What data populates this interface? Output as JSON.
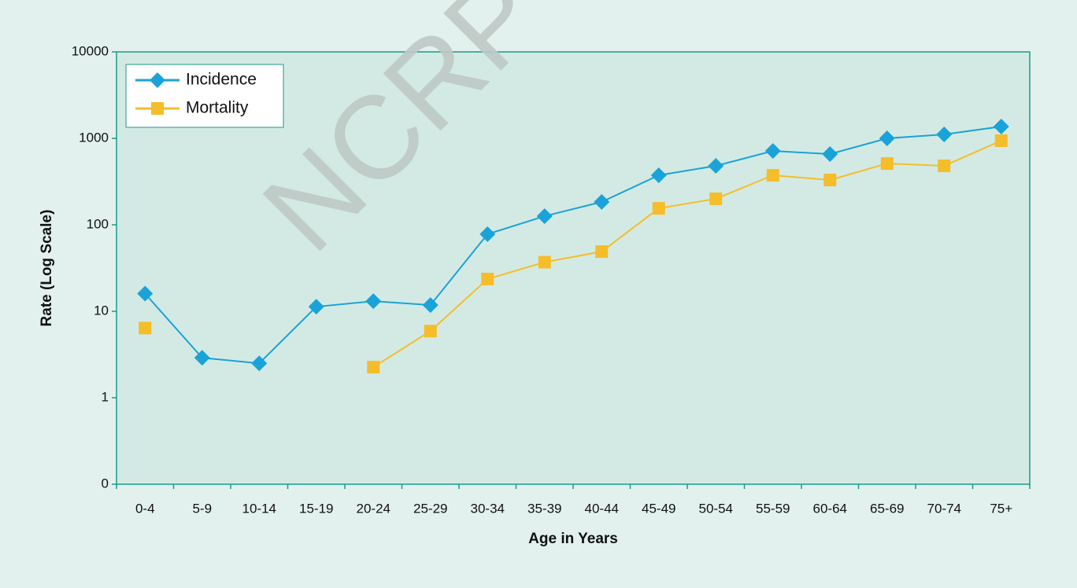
{
  "chart_data": {
    "type": "line",
    "watermark": "NCRP",
    "xlabel": "Age in Years",
    "ylabel": "Rate (Log Scale)",
    "categories": [
      "0-4",
      "5-9",
      "10-14",
      "15-19",
      "20-24",
      "25-29",
      "30-34",
      "35-39",
      "40-44",
      "45-49",
      "50-54",
      "55-59",
      "60-64",
      "65-69",
      "70-74",
      "75+"
    ],
    "series": [
      {
        "name": "Incidence",
        "color": "#1aa3d8",
        "marker": "diamond",
        "values": [
          16,
          2.9,
          2.5,
          11.3,
          13.1,
          11.8,
          78,
          126,
          184,
          374,
          481,
          715,
          658,
          1000,
          1110,
          1370
        ]
      },
      {
        "name": "Mortality",
        "color": "#f5bd2a",
        "marker": "square",
        "values": [
          6.4,
          null,
          null,
          null,
          2.26,
          5.9,
          23.6,
          37,
          49,
          155,
          200,
          374,
          330,
          512,
          481,
          940
        ]
      }
    ],
    "yscale": "log",
    "ylim": [
      0.1,
      10000
    ],
    "yticks": [
      {
        "value": 0.1,
        "label": "0"
      },
      1,
      10,
      100,
      1000,
      10000
    ],
    "legend": "top-left"
  }
}
